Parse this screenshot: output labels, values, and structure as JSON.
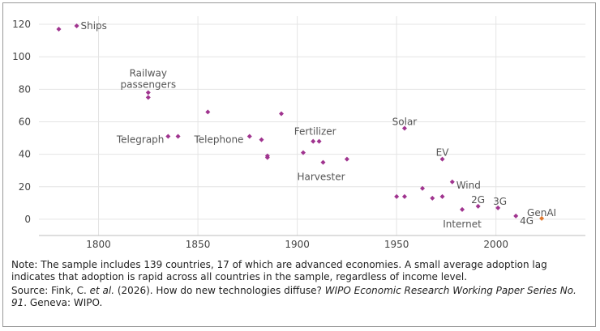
{
  "chart_data": {
    "type": "scatter",
    "title": "",
    "xlabel": "",
    "ylabel": "",
    "xlim": [
      1770,
      2045
    ],
    "ylim": [
      -10,
      125
    ],
    "xticks": [
      1800,
      1850,
      1900,
      1950,
      2000
    ],
    "yticks": [
      0,
      20,
      40,
      60,
      80,
      100,
      120
    ],
    "grid": true,
    "colors": {
      "default": "#a0348f",
      "highlight": "#e0782e",
      "label": "#555555"
    },
    "points": [
      {
        "x": 1780,
        "y": 117
      },
      {
        "x": 1789,
        "y": 119
      },
      {
        "x": 1825,
        "y": 78
      },
      {
        "x": 1825,
        "y": 75
      },
      {
        "x": 1835,
        "y": 51
      },
      {
        "x": 1840,
        "y": 51
      },
      {
        "x": 1855,
        "y": 66
      },
      {
        "x": 1876,
        "y": 51
      },
      {
        "x": 1882,
        "y": 49
      },
      {
        "x": 1885,
        "y": 39
      },
      {
        "x": 1885,
        "y": 38
      },
      {
        "x": 1892,
        "y": 65
      },
      {
        "x": 1903,
        "y": 41
      },
      {
        "x": 1908,
        "y": 48
      },
      {
        "x": 1911,
        "y": 48
      },
      {
        "x": 1913,
        "y": 35
      },
      {
        "x": 1925,
        "y": 37
      },
      {
        "x": 1950,
        "y": 14
      },
      {
        "x": 1954,
        "y": 14
      },
      {
        "x": 1954,
        "y": 56
      },
      {
        "x": 1963,
        "y": 19
      },
      {
        "x": 1968,
        "y": 13
      },
      {
        "x": 1973,
        "y": 14
      },
      {
        "x": 1973,
        "y": 37
      },
      {
        "x": 1978,
        "y": 23
      },
      {
        "x": 1983,
        "y": 6
      },
      {
        "x": 1991,
        "y": 8
      },
      {
        "x": 2001,
        "y": 7
      },
      {
        "x": 2010,
        "y": 2
      },
      {
        "x": 2023,
        "y": 0.5,
        "highlight": true
      }
    ],
    "annotations": [
      {
        "text": "Ships",
        "x": 1791,
        "y": 119,
        "anchor": "start"
      },
      {
        "text": "Railway",
        "x": 1825,
        "y": 90,
        "anchor": "middle"
      },
      {
        "text": "passengers",
        "x": 1825,
        "y": 83,
        "anchor": "middle"
      },
      {
        "text": "Telegraph",
        "x": 1833,
        "y": 49,
        "anchor": "end"
      },
      {
        "text": "Telephone",
        "x": 1873,
        "y": 49,
        "anchor": "end"
      },
      {
        "text": "Fertilizer",
        "x": 1909,
        "y": 54,
        "anchor": "middle"
      },
      {
        "text": "Harvester",
        "x": 1912,
        "y": 26,
        "anchor": "middle"
      },
      {
        "text": "Solar",
        "x": 1954,
        "y": 60,
        "anchor": "middle"
      },
      {
        "text": "EV",
        "x": 1973,
        "y": 41,
        "anchor": "middle"
      },
      {
        "text": "Wind",
        "x": 1980,
        "y": 21,
        "anchor": "start"
      },
      {
        "text": "2G",
        "x": 1991,
        "y": 12,
        "anchor": "middle"
      },
      {
        "text": "3G",
        "x": 2002,
        "y": 11,
        "anchor": "middle"
      },
      {
        "text": "Internet",
        "x": 1983,
        "y": -3,
        "anchor": "middle"
      },
      {
        "text": "4G",
        "x": 2012,
        "y": -1,
        "anchor": "start"
      },
      {
        "text": "GenAI",
        "x": 2023,
        "y": 4,
        "anchor": "middle"
      }
    ]
  },
  "notes": {
    "note": "Note: The sample includes 139 countries, 17 of which are advanced economies. A small average adoption lag indicates that adoption is rapid across all countries in the sample, regardless of income level.",
    "source_prefix": "Source: Fink, C. ",
    "source_etal": "et al.",
    "source_mid": " (2026). How do new technologies diffuse? ",
    "source_series": "WIPO Economic Research Working Paper Series No. 91",
    "source_end": ". Geneva: WIPO."
  }
}
